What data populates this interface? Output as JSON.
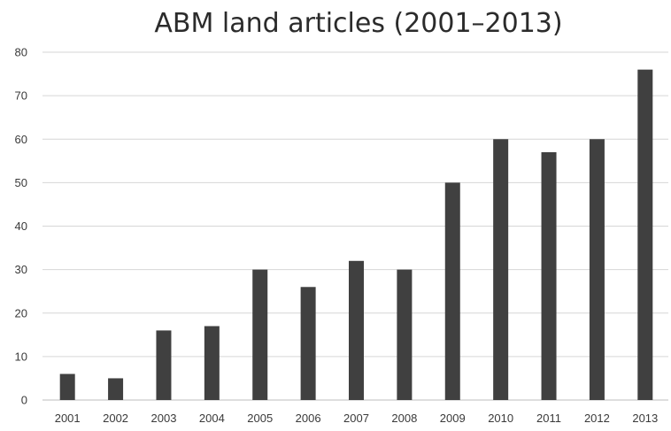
{
  "chart_data": {
    "type": "bar",
    "title": "ABM land articles (2001–2013)",
    "xlabel": "",
    "ylabel": "",
    "categories": [
      "2001",
      "2002",
      "2003",
      "2004",
      "2005",
      "2006",
      "2007",
      "2008",
      "2009",
      "2010",
      "2011",
      "2012",
      "2013"
    ],
    "values": [
      6,
      5,
      16,
      17,
      30,
      26,
      32,
      30,
      50,
      60,
      57,
      60,
      76
    ],
    "ylim": [
      0,
      80
    ],
    "yticks": [
      0,
      10,
      20,
      30,
      40,
      50,
      60,
      70,
      80
    ],
    "grid": true,
    "legend": "none",
    "bar_color": "#404040"
  }
}
